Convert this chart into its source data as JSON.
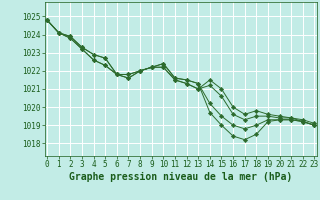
{
  "title": "Graphe pression niveau de la mer (hPa)",
  "bg_color": "#c2ece6",
  "grid_color": "#a8d8d0",
  "line_color": "#2d6b2d",
  "marker_color": "#2d6b2d",
  "xlim": [
    -0.2,
    23.2
  ],
  "ylim": [
    1017.3,
    1025.8
  ],
  "yticks": [
    1018,
    1019,
    1020,
    1021,
    1022,
    1023,
    1024,
    1025
  ],
  "xticks": [
    0,
    1,
    2,
    3,
    4,
    5,
    6,
    7,
    8,
    9,
    10,
    11,
    12,
    13,
    14,
    15,
    16,
    17,
    18,
    19,
    20,
    21,
    22,
    23
  ],
  "series": [
    [
      1024.8,
      1024.1,
      1023.9,
      1023.3,
      1022.9,
      1022.7,
      1021.8,
      1021.8,
      1022.0,
      1022.2,
      1022.4,
      1021.6,
      1021.5,
      1021.3,
      1019.7,
      1019.0,
      1018.4,
      1018.2,
      1018.5,
      1019.2,
      1019.3,
      1019.3,
      1019.2,
      1019.0
    ],
    [
      1024.8,
      1024.1,
      1023.9,
      1023.3,
      1022.9,
      1022.7,
      1021.8,
      1021.8,
      1022.0,
      1022.2,
      1022.4,
      1021.6,
      1021.5,
      1021.3,
      1020.2,
      1019.5,
      1019.0,
      1018.8,
      1019.0,
      1019.3,
      1019.3,
      1019.3,
      1019.2,
      1019.0
    ],
    [
      1024.8,
      1024.1,
      1023.8,
      1023.2,
      1022.6,
      1022.3,
      1021.8,
      1021.6,
      1022.0,
      1022.2,
      1022.2,
      1021.5,
      1021.3,
      1021.0,
      1021.2,
      1020.6,
      1019.6,
      1019.3,
      1019.5,
      1019.5,
      1019.4,
      1019.4,
      1019.2,
      1019.0
    ],
    [
      1024.8,
      1024.1,
      1023.8,
      1023.2,
      1022.6,
      1022.3,
      1021.8,
      1021.6,
      1022.0,
      1022.2,
      1022.2,
      1021.5,
      1021.3,
      1021.0,
      1021.5,
      1021.0,
      1020.0,
      1019.6,
      1019.8,
      1019.6,
      1019.5,
      1019.4,
      1019.3,
      1019.1
    ]
  ],
  "title_fontsize": 7,
  "tick_fontsize": 5.5,
  "title_color": "#1a5c1a",
  "tick_color": "#1a5c1a"
}
